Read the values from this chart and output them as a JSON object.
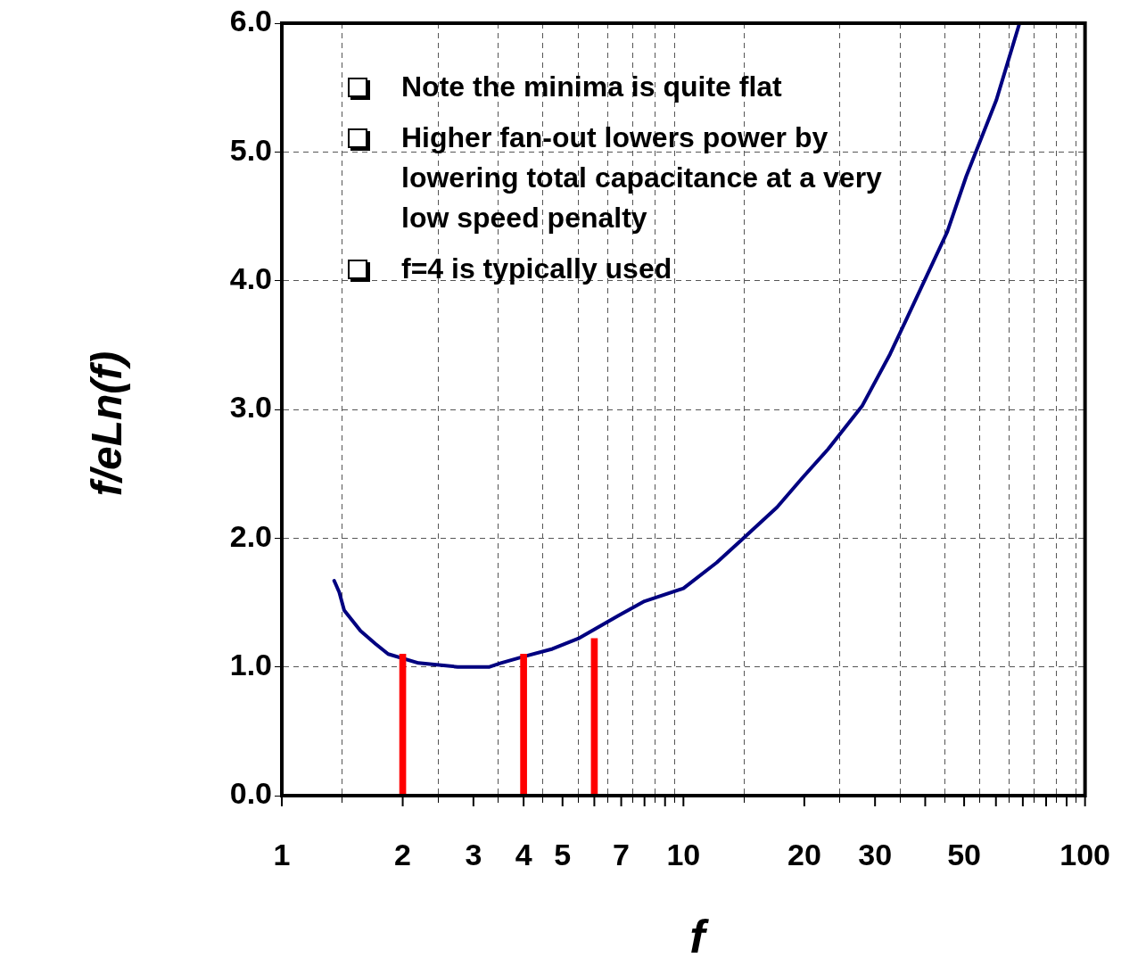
{
  "chart_data": {
    "type": "line",
    "xlabel": "f",
    "ylabel": "f/eLn(f)",
    "log": "x",
    "grid": true,
    "legend": false,
    "xlim": [
      1,
      100
    ],
    "ylim": [
      0,
      6
    ],
    "xticks": [
      1,
      2,
      3,
      4,
      5,
      {
        "value": 6,
        "label": null
      },
      7,
      {
        "value": 8,
        "label": null
      },
      {
        "value": 9,
        "label": null
      },
      10,
      20,
      30,
      {
        "value": 40,
        "label": null
      },
      50,
      {
        "value": 60,
        "label": null
      },
      {
        "value": 70,
        "label": null
      },
      {
        "value": 80,
        "label": null
      },
      {
        "value": 90,
        "label": null
      },
      100
    ],
    "yticks": [
      {
        "value": 0,
        "label": "0.0"
      },
      {
        "value": 1,
        "label": "1.0"
      },
      {
        "value": 2,
        "label": "2.0"
      },
      {
        "value": 3,
        "label": "3.0"
      },
      {
        "value": 4,
        "label": "4.0"
      },
      {
        "value": 5,
        "label": "5.0"
      },
      {
        "value": 6,
        "label": "6.0"
      }
    ],
    "annotations": [
      "Note the minima is quite flat",
      "Higher fan-out lowers power by lowering total capacitance at a very low speed penalty",
      "f=4 is typically used"
    ],
    "series": [
      {
        "color": "#000080",
        "x": [
          1.35,
          1.39,
          1.43,
          1.57,
          1.71,
          1.84,
          2.19,
          2.74,
          3.29,
          3.51,
          4.0,
          4.72,
          5.47,
          6.9,
          8.0,
          10,
          12.1,
          14.0,
          17.1,
          19.8,
          22.9,
          27.9,
          32.7,
          35.3,
          45.4,
          50.6,
          60.1,
          68.7
        ],
        "values": [
          1.67,
          1.58,
          1.44,
          1.28,
          1.18,
          1.1,
          1.03,
          1.0,
          1.0,
          1.03,
          1.08,
          1.14,
          1.22,
          1.4,
          1.51,
          1.61,
          1.81,
          1.99,
          2.24,
          2.47,
          2.69,
          3.03,
          3.43,
          3.65,
          4.38,
          4.81,
          5.4,
          6.0
        ]
      },
      {
        "type": "bar",
        "color": "#ff0000",
        "x": [
          2,
          4,
          6
        ],
        "values": [
          1.1,
          1.1,
          1.22
        ]
      }
    ]
  }
}
